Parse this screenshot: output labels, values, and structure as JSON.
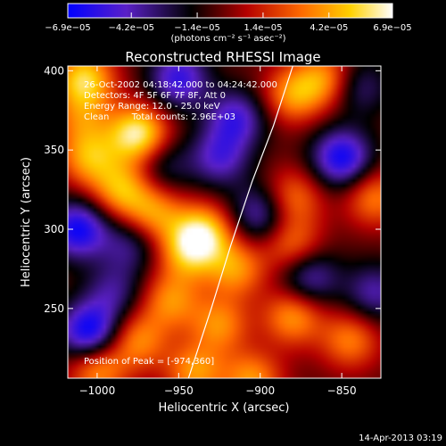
{
  "chart_data": {
    "type": "heatmap",
    "title": "Reconstructed RHESSI Image",
    "xlabel": "Heliocentric X (arcsec)",
    "ylabel": "Heliocentric Y (arcsec)",
    "xlim": [
      -1018,
      -826
    ],
    "ylim": [
      206,
      403
    ],
    "x_ticks": [
      {
        "value": -1000,
        "label": "−1000"
      },
      {
        "value": -950,
        "label": "−950"
      },
      {
        "value": -900,
        "label": "−900"
      },
      {
        "value": -850,
        "label": "−850"
      }
    ],
    "y_ticks": [
      {
        "value": 250,
        "label": "250"
      },
      {
        "value": 300,
        "label": "300"
      },
      {
        "value": 350,
        "label": "350"
      },
      {
        "value": 400,
        "label": "400"
      }
    ],
    "colorbar": {
      "min": -6.9e-05,
      "max": 6.9e-05,
      "ticks": [
        {
          "value": -6.9e-05,
          "label": "−6.9e−05"
        },
        {
          "value": -4.2e-05,
          "label": "−4.2e−05"
        },
        {
          "value": -1.4e-05,
          "label": "−1.4e−05"
        },
        {
          "value": 1.4e-05,
          "label": "1.4e−05"
        },
        {
          "value": 4.2e-05,
          "label": "4.2e−05"
        },
        {
          "value": 6.9e-05,
          "label": "6.9e−05"
        }
      ],
      "unit_label": "(photons cm⁻² s⁻¹ asec⁻²)",
      "colors": [
        "#0000ff",
        "#5a20c8",
        "#000000",
        "#b40000",
        "#ff6a00",
        "#ffd000",
        "#ffffff"
      ]
    },
    "annotations": [
      "26-Oct-2002 04:18:42.000 to 04:24:42.000",
      "Detectors: 4F 5F 6F 7F 8F, Att 0",
      "Energy Range: 12.0 - 25.0 keV",
      "Clean        Total counts: 2.96E+03"
    ],
    "peak_label": "Position of Peak = [-974,360]",
    "peak": {
      "x": -974,
      "y": 360
    },
    "limb_curve": [
      [
        -944,
        206
      ],
      [
        -930,
        250
      ],
      [
        -918,
        290
      ],
      [
        -905,
        330
      ],
      [
        -892,
        365
      ],
      [
        -880,
        403
      ]
    ],
    "sources": [
      {
        "x": -975,
        "y": 360,
        "v": 6.9e-05
      },
      {
        "x": -1008,
        "y": 395,
        "v": 5.8e-05
      },
      {
        "x": -1005,
        "y": 345,
        "v": 4.5e-05
      },
      {
        "x": -985,
        "y": 325,
        "v": 4.8e-05
      },
      {
        "x": -965,
        "y": 310,
        "v": 4.2e-05
      },
      {
        "x": -935,
        "y": 298,
        "v": 5.6e-05
      },
      {
        "x": -945,
        "y": 285,
        "v": 4.2e-05
      },
      {
        "x": -915,
        "y": 275,
        "v": 4.2e-05
      },
      {
        "x": -955,
        "y": 255,
        "v": 4e-05
      },
      {
        "x": -925,
        "y": 240,
        "v": 4e-05
      },
      {
        "x": -975,
        "y": 230,
        "v": 4e-05
      },
      {
        "x": -1000,
        "y": 212,
        "v": 4.5e-05
      },
      {
        "x": -940,
        "y": 210,
        "v": 4.3e-05
      },
      {
        "x": -905,
        "y": 205,
        "v": 4.3e-05
      },
      {
        "x": -880,
        "y": 245,
        "v": 4.4e-05
      },
      {
        "x": -880,
        "y": 290,
        "v": 3.6e-05
      },
      {
        "x": -880,
        "y": 320,
        "v": 3.6e-05
      },
      {
        "x": -880,
        "y": 385,
        "v": 4.2e-05
      },
      {
        "x": -860,
        "y": 395,
        "v": 4.2e-05
      },
      {
        "x": -830,
        "y": 320,
        "v": 3.8e-05
      },
      {
        "x": -845,
        "y": 230,
        "v": 3.8e-05
      },
      {
        "x": -1010,
        "y": 370,
        "v": 3e-05
      },
      {
        "x": -1005,
        "y": 235,
        "v": -6.5e-05
      },
      {
        "x": -1012,
        "y": 300,
        "v": -6e-05
      },
      {
        "x": -850,
        "y": 345,
        "v": -6e-05
      },
      {
        "x": -950,
        "y": 395,
        "v": -5e-05
      },
      {
        "x": -915,
        "y": 370,
        "v": -4.5e-05
      },
      {
        "x": -925,
        "y": 345,
        "v": -4e-05
      },
      {
        "x": -900,
        "y": 310,
        "v": -4e-05
      },
      {
        "x": -870,
        "y": 270,
        "v": -4e-05
      },
      {
        "x": -990,
        "y": 260,
        "v": -3e-05
      },
      {
        "x": -960,
        "y": 340,
        "v": -2.5e-05
      },
      {
        "x": -840,
        "y": 390,
        "v": -3e-05
      },
      {
        "x": -830,
        "y": 260,
        "v": -3.5e-05
      },
      {
        "x": -980,
        "y": 290,
        "v": -3e-05
      }
    ]
  },
  "footer": {
    "timestamp": "14-Apr-2013 03:19"
  }
}
